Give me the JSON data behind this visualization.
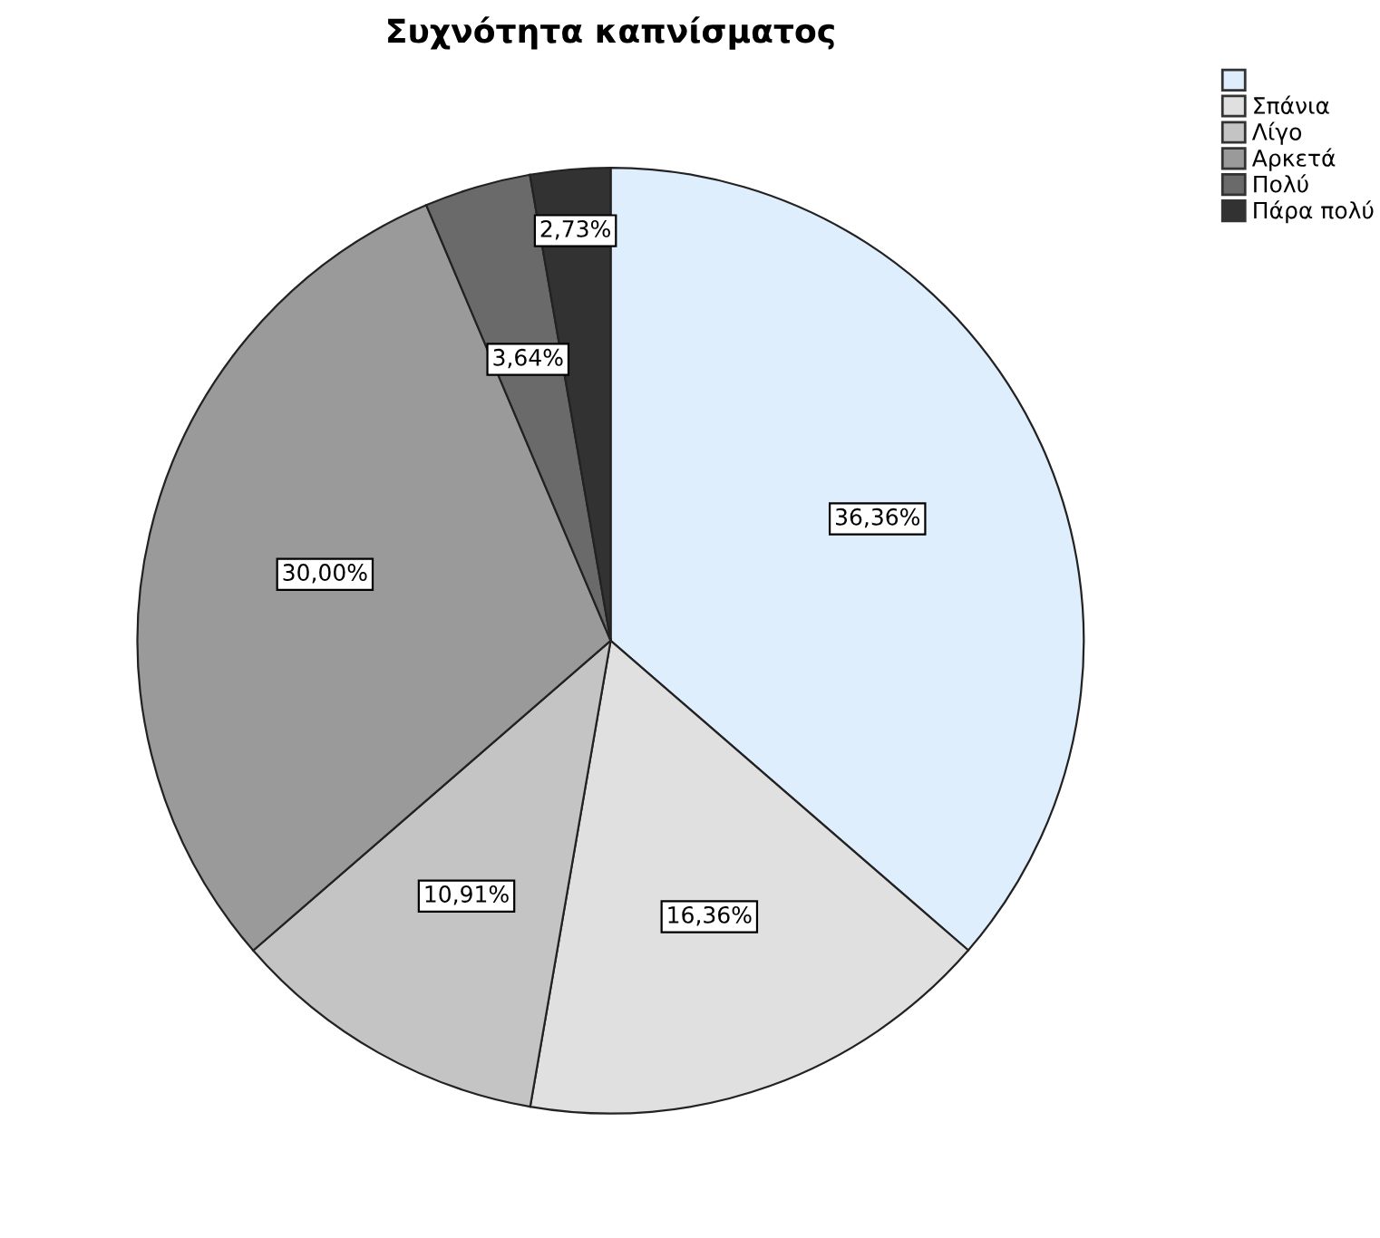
{
  "chart_data": {
    "type": "pie",
    "title": "Συχνότητα καπνίσματος",
    "categories": [
      null,
      "Σπάνια",
      "Λίγο",
      "Αρκετά",
      "Πολύ",
      "Πάρα πολύ"
    ],
    "values": [
      36.36,
      16.36,
      10.91,
      30.0,
      3.64,
      2.73
    ],
    "value_labels": [
      "36,36%",
      "16,36%",
      "10,91%",
      "30,00%",
      "3,64%",
      "2,73%"
    ],
    "colors": [
      "#dfeefc",
      "#e0e0e0",
      "#c4c4c4",
      "#9a9a9a",
      "#6a6a6a",
      "#323232"
    ],
    "legend": "top right"
  }
}
